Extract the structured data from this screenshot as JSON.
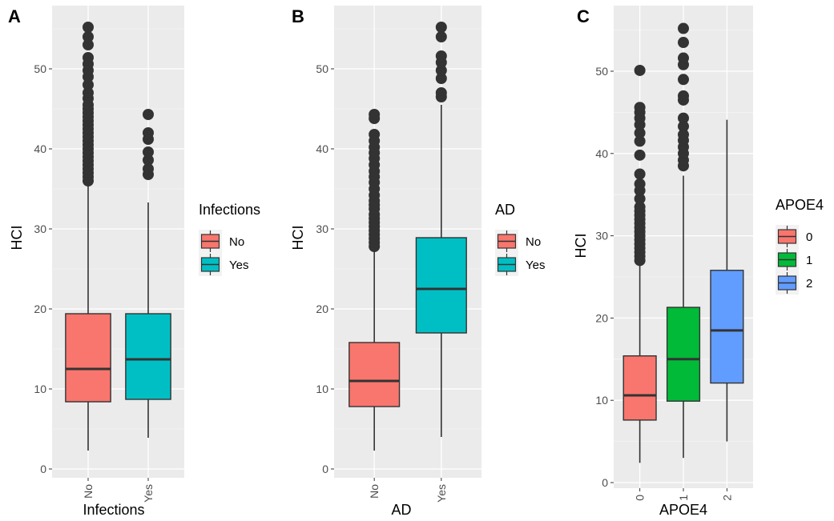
{
  "chart_data": [
    {
      "type": "box",
      "panel_label": "A",
      "xlabel": "Infections",
      "ylabel": "HCI",
      "ylim": [
        0,
        56
      ],
      "yticks": [
        0,
        10,
        20,
        30,
        40,
        50
      ],
      "categories": [
        "No",
        "Yes"
      ],
      "legend": {
        "title": "Infections",
        "position": "right",
        "entries": [
          "No",
          "Yes"
        ]
      },
      "colors": [
        "#F8766D",
        "#00BFC4"
      ],
      "series": [
        {
          "category": "No",
          "min": 2.3,
          "q1": 8.4,
          "median": 12.5,
          "q3": 19.4,
          "max": 35.7,
          "outliers": [
            36.0,
            36.5,
            37.0,
            37.5,
            38.0,
            38.5,
            39.0,
            39.5,
            40.0,
            40.5,
            41.0,
            41.5,
            42.0,
            42.5,
            43.0,
            43.5,
            44.0,
            44.5,
            45.0,
            45.5,
            46.3,
            47.0,
            48.0,
            49.0,
            49.8,
            50.6,
            51.4,
            53.0,
            54.0,
            55.2
          ]
        },
        {
          "category": "Yes",
          "min": 3.9,
          "q1": 8.7,
          "median": 13.7,
          "q3": 19.4,
          "max": 33.3,
          "outliers": [
            36.8,
            37.5,
            38.6,
            39.6,
            41.2,
            42.0,
            44.3
          ]
        }
      ]
    },
    {
      "type": "box",
      "panel_label": "B",
      "xlabel": "AD",
      "ylabel": "HCI",
      "ylim": [
        0,
        56
      ],
      "yticks": [
        0,
        10,
        20,
        30,
        40,
        50
      ],
      "categories": [
        "No",
        "Yes"
      ],
      "legend": {
        "title": "AD",
        "position": "right",
        "entries": [
          "No",
          "Yes"
        ]
      },
      "colors": [
        "#F8766D",
        "#00BFC4"
      ],
      "series": [
        {
          "category": "No",
          "min": 2.3,
          "q1": 7.8,
          "median": 11.0,
          "q3": 15.8,
          "max": 27.6,
          "outliers": [
            27.8,
            28.3,
            28.8,
            29.3,
            29.8,
            30.3,
            30.8,
            31.3,
            31.8,
            32.5,
            33.0,
            33.5,
            34.2,
            35.0,
            35.8,
            36.5,
            37.2,
            38.0,
            38.8,
            39.5,
            40.2,
            41.0,
            41.8,
            43.8,
            44.3
          ]
        },
        {
          "category": "Yes",
          "min": 4.0,
          "q1": 17.0,
          "median": 22.5,
          "q3": 28.9,
          "max": 45.5,
          "outliers": [
            46.5,
            47.0,
            48.8,
            49.8,
            50.8,
            51.6,
            54.0,
            55.2
          ]
        }
      ]
    },
    {
      "type": "box",
      "panel_label": "C",
      "xlabel": "APOE4",
      "ylabel": "HCI",
      "ylim": [
        0,
        56
      ],
      "yticks": [
        0,
        10,
        20,
        30,
        40,
        50
      ],
      "categories": [
        "0",
        "1",
        "2"
      ],
      "legend": {
        "title": "APOE4",
        "position": "right",
        "entries": [
          "0",
          "1",
          "2"
        ]
      },
      "colors": [
        "#F8766D",
        "#00BA38",
        "#619CFF"
      ],
      "series": [
        {
          "category": "0",
          "min": 2.4,
          "q1": 7.6,
          "median": 10.6,
          "q3": 15.4,
          "max": 26.8,
          "outliers": [
            27.0,
            27.5,
            28.0,
            28.5,
            29.0,
            29.5,
            30.0,
            30.5,
            31.0,
            31.5,
            32.0,
            32.5,
            33.0,
            33.5,
            34.5,
            35.5,
            36.3,
            37.5,
            39.8,
            41.5,
            42.5,
            43.5,
            44.3,
            45.0,
            45.6,
            50.1
          ]
        },
        {
          "category": "1",
          "min": 3.0,
          "q1": 9.9,
          "median": 15.0,
          "q3": 21.3,
          "max": 37.3,
          "outliers": [
            38.5,
            39.2,
            40.0,
            40.8,
            41.6,
            42.3,
            43.3,
            44.3,
            46.5,
            47.0,
            49.0,
            50.8,
            51.6,
            53.5,
            55.2
          ]
        },
        {
          "category": "2",
          "min": 5.0,
          "q1": 12.1,
          "median": 18.5,
          "q3": 25.8,
          "max": 44.1,
          "outliers": []
        }
      ]
    }
  ]
}
